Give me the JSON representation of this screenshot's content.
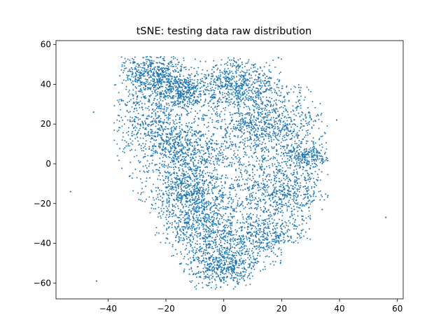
{
  "chart_data": {
    "type": "scatter",
    "title": "tSNE: testing data raw distribution",
    "xlabel": "",
    "ylabel": "",
    "xlim": [
      -58,
      62
    ],
    "ylim": [
      -68,
      62
    ],
    "xticks": [
      -40,
      -20,
      0,
      20,
      40,
      60
    ],
    "yticks": [
      -60,
      -40,
      -20,
      0,
      20,
      40,
      60
    ],
    "xtick_labels": [
      "−40",
      "−20",
      "0",
      "20",
      "40",
      "60"
    ],
    "ytick_labels": [
      "−60",
      "−40",
      "−20",
      "0",
      "20",
      "40",
      "60"
    ],
    "grid": false,
    "legend": "none",
    "marker_color": "#1f77b4",
    "series": [
      {
        "points_estimated": 7000,
        "clusters": [
          {
            "cx": -24,
            "cy": 45,
            "sx": 6,
            "sy": 5,
            "w": 0.08
          },
          {
            "cx": -14,
            "cy": 37,
            "sx": 4,
            "sy": 4,
            "w": 0.05
          },
          {
            "cx": 5,
            "cy": 40,
            "sx": 9,
            "sy": 7,
            "w": 0.1
          },
          {
            "cx": 15,
            "cy": 20,
            "sx": 10,
            "sy": 8,
            "w": 0.1
          },
          {
            "cx": -25,
            "cy": 25,
            "sx": 7,
            "sy": 10,
            "w": 0.07
          },
          {
            "cx": -15,
            "cy": 8,
            "sx": 7,
            "sy": 8,
            "w": 0.08
          },
          {
            "cx": 28,
            "cy": 4,
            "sx": 5,
            "sy": 3,
            "w": 0.04
          },
          {
            "cx": -12,
            "cy": -15,
            "sx": 7,
            "sy": 8,
            "w": 0.1
          },
          {
            "cx": 20,
            "cy": -15,
            "sx": 8,
            "sy": 8,
            "w": 0.09
          },
          {
            "cx": -5,
            "cy": -35,
            "sx": 8,
            "sy": 8,
            "w": 0.09
          },
          {
            "cx": 0,
            "cy": -52,
            "sx": 6,
            "sy": 5,
            "w": 0.07
          },
          {
            "cx": 15,
            "cy": -38,
            "sx": 7,
            "sy": 6,
            "w": 0.06
          },
          {
            "cx": 3,
            "cy": 0,
            "sx": 14,
            "sy": 14,
            "w": 0.07
          }
        ],
        "outliers": [
          [
            -45,
            26
          ],
          [
            -53,
            -14
          ],
          [
            -44,
            -59
          ],
          [
            56,
            -27
          ],
          [
            39,
            22
          ],
          [
            36,
            -16
          ],
          [
            34,
            -23
          ]
        ]
      }
    ]
  }
}
